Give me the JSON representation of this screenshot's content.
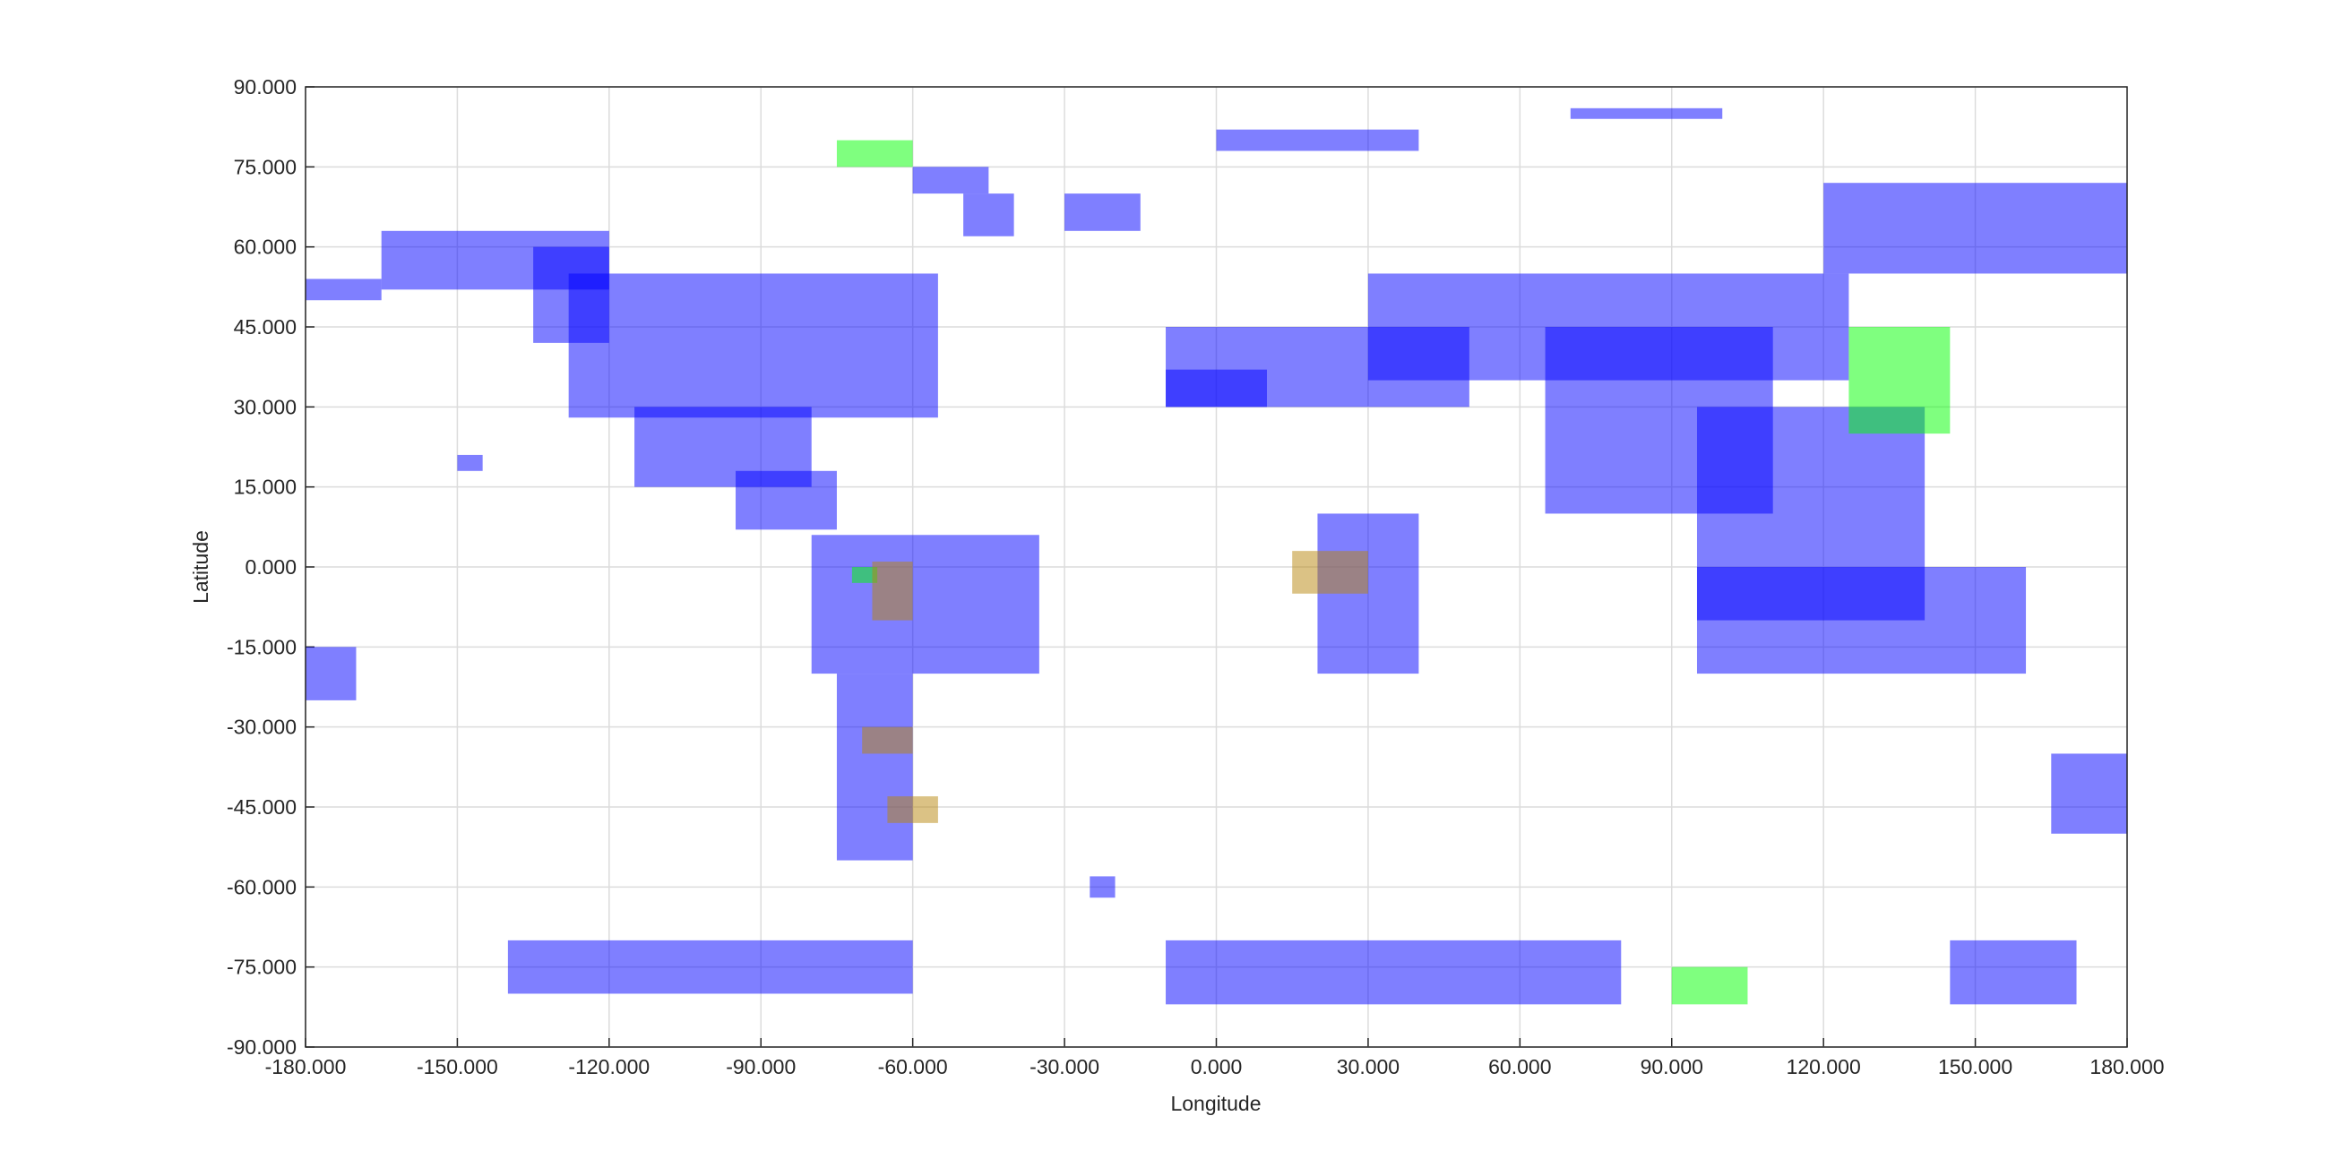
{
  "chart_data": {
    "type": "map",
    "xlabel": "Longitude",
    "ylabel": "Latitude",
    "xlim": [
      -180,
      180
    ],
    "ylim": [
      -90,
      90
    ],
    "grid": true,
    "opacity": 0.5,
    "xticks": [
      {
        "value": -180,
        "label": "-180.000"
      },
      {
        "value": -150,
        "label": "-150.000"
      },
      {
        "value": -120,
        "label": "-120.000"
      },
      {
        "value": -90,
        "label": "-90.000"
      },
      {
        "value": -60,
        "label": "-60.000"
      },
      {
        "value": -30,
        "label": "-30.000"
      },
      {
        "value": 0,
        "label": "0.000"
      },
      {
        "value": 30,
        "label": "30.000"
      },
      {
        "value": 60,
        "label": "60.000"
      },
      {
        "value": 90,
        "label": "90.000"
      },
      {
        "value": 120,
        "label": "120.000"
      },
      {
        "value": 150,
        "label": "150.000"
      },
      {
        "value": 180,
        "label": "180.000"
      }
    ],
    "yticks": [
      {
        "value": -90,
        "label": "-90.000"
      },
      {
        "value": -75,
        "label": "-75.000"
      },
      {
        "value": -60,
        "label": "-60.000"
      },
      {
        "value": -45,
        "label": "-45.000"
      },
      {
        "value": -30,
        "label": "-30.000"
      },
      {
        "value": -15,
        "label": "-15.000"
      },
      {
        "value": 0,
        "label": "0.000"
      },
      {
        "value": 15,
        "label": "15.000"
      },
      {
        "value": 30,
        "label": "30.000"
      },
      {
        "value": 45,
        "label": "45.000"
      },
      {
        "value": 60,
        "label": "60.000"
      },
      {
        "value": 75,
        "label": "75.000"
      },
      {
        "value": 90,
        "label": "90.000"
      }
    ],
    "series": [
      {
        "color": "#0000ff",
        "boxes": [
          [
            -180,
            -165,
            50,
            54
          ],
          [
            -165,
            -120,
            52,
            63
          ],
          [
            -135,
            -120,
            42,
            60
          ],
          [
            -128,
            -55,
            28,
            55
          ],
          [
            -115,
            -80,
            15,
            30
          ],
          [
            -95,
            -75,
            7,
            18
          ],
          [
            -80,
            -35,
            -20,
            6
          ],
          [
            -75,
            -60,
            -55,
            -20
          ],
          [
            -50,
            -40,
            62,
            70
          ],
          [
            -60,
            -45,
            70,
            75
          ],
          [
            -30,
            -15,
            63,
            70
          ],
          [
            0,
            40,
            78,
            82
          ],
          [
            70,
            100,
            84,
            86
          ],
          [
            -10,
            50,
            30,
            45
          ],
          [
            30,
            125,
            35,
            55
          ],
          [
            65,
            110,
            10,
            45
          ],
          [
            95,
            140,
            -10,
            30
          ],
          [
            120,
            180,
            55,
            72
          ],
          [
            20,
            40,
            -20,
            10
          ],
          [
            -10,
            10,
            30,
            37
          ],
          [
            95,
            160,
            -20,
            0
          ],
          [
            165,
            180,
            -50,
            -35
          ],
          [
            -140,
            -60,
            -80,
            -70
          ],
          [
            -25,
            -20,
            -62,
            -58
          ],
          [
            -10,
            80,
            -82,
            -70
          ],
          [
            145,
            170,
            -82,
            -70
          ],
          [
            -150,
            -145,
            18,
            21
          ],
          [
            -180,
            -170,
            -25,
            -15
          ]
        ]
      },
      {
        "color": "#00ff00",
        "boxes": [
          [
            -75,
            -60,
            75,
            80
          ],
          [
            125,
            145,
            25,
            45
          ],
          [
            90,
            105,
            -82,
            -75
          ],
          [
            -72,
            -67,
            -3,
            0
          ]
        ]
      },
      {
        "color": "#b8860b",
        "boxes": [
          [
            -68,
            -60,
            -10,
            1
          ],
          [
            15,
            30,
            -5,
            3
          ],
          [
            -70,
            -60,
            -35,
            -30
          ],
          [
            -65,
            -55,
            -48,
            -43
          ]
        ]
      }
    ]
  }
}
